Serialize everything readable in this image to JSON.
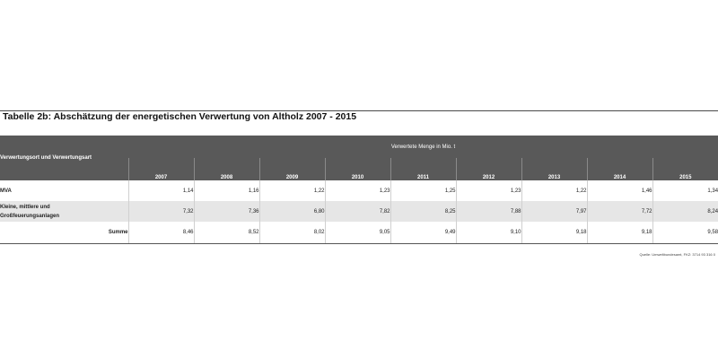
{
  "title": "Tabelle 2b: Abschätzung der energetischen Verwertung von Altholz 2007 - 2015",
  "table": {
    "row_header": "Verwertungsort und Verwertungsart",
    "group_header": "Verwertete Menge in Mio. t",
    "years": [
      "2007",
      "2008",
      "2009",
      "2010",
      "2011",
      "2012",
      "2013",
      "2014",
      "2015"
    ],
    "rows": [
      {
        "label": "MVA",
        "values": [
          "1,14",
          "1,16",
          "1,22",
          "1,23",
          "1,25",
          "1,23",
          "1,22",
          "1,46",
          "1,34"
        ]
      },
      {
        "label_line1": "Kleine, mittlere und",
        "label_line2": "Großfeuerungsanlagen",
        "values": [
          "7,32",
          "7,36",
          "6,80",
          "7,82",
          "8,25",
          "7,88",
          "7,97",
          "7,72",
          "8,24"
        ]
      },
      {
        "label": "Summe",
        "values": [
          "8,46",
          "8,52",
          "8,02",
          "9,05",
          "9,49",
          "9,10",
          "9,18",
          "9,18",
          "9,58"
        ]
      }
    ]
  },
  "source": "Quelle: Umweltbundesamt, FKZ: 3714 93 316 0",
  "colors": {
    "header_bg": "#595959",
    "stripe_bg": "#e6e6e6"
  }
}
